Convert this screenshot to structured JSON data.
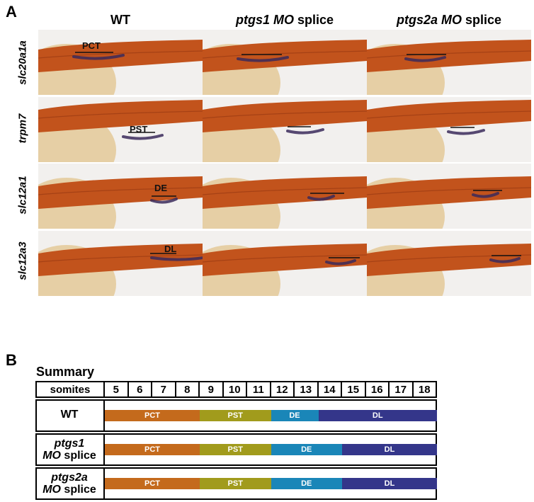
{
  "panels": {
    "a": "A",
    "b": "B"
  },
  "columns": [
    {
      "gene": "",
      "suffix": "WT"
    },
    {
      "gene": "ptgs1 MO",
      "suffix": " splice"
    },
    {
      "gene": "ptgs2a MO",
      "suffix": " splice"
    }
  ],
  "rows": [
    "slc20a1a",
    "trpm7",
    "slc12a1",
    "slc12a3"
  ],
  "segment_labels": {
    "pct": "PCT",
    "pst": "PST",
    "de": "DE",
    "dl": "DL"
  },
  "summary": {
    "title": "Summary",
    "somites_label": "somites",
    "somites": [
      "5",
      "6",
      "7",
      "8",
      "9",
      "10",
      "11",
      "12",
      "13",
      "14",
      "15",
      "16",
      "17",
      "18"
    ],
    "rows": [
      {
        "name_line1": "WT",
        "name_line2_italic": "",
        "name_line2": "",
        "bars": [
          {
            "label": "PCT",
            "start": 5,
            "end": 8,
            "color": "#c46a1c"
          },
          {
            "label": "PST",
            "start": 9,
            "end": 11,
            "color": "#a19b1c"
          },
          {
            "label": "DE",
            "start": 12,
            "end": 13,
            "color": "#1a86b8"
          },
          {
            "label": "DL",
            "start": 14,
            "end": 18,
            "color": "#34368a"
          }
        ]
      },
      {
        "name_line1": "ptgs1",
        "name_line2_italic": "MO",
        "name_line2": " splice",
        "bars": [
          {
            "label": "PCT",
            "start": 5,
            "end": 8,
            "color": "#c46a1c"
          },
          {
            "label": "PST",
            "start": 9,
            "end": 11,
            "color": "#a19b1c"
          },
          {
            "label": "DE",
            "start": 12,
            "end": 14,
            "color": "#1a86b8"
          },
          {
            "label": "DL",
            "start": 15,
            "end": 18,
            "color": "#34368a"
          }
        ]
      },
      {
        "name_line1": "ptgs2a",
        "name_line2_italic": "MO",
        "name_line2": " splice",
        "bars": [
          {
            "label": "PCT",
            "start": 5,
            "end": 8,
            "color": "#c46a1c"
          },
          {
            "label": "PST",
            "start": 9,
            "end": 11,
            "color": "#a19b1c"
          },
          {
            "label": "DE",
            "start": 12,
            "end": 14,
            "color": "#1a86b8"
          },
          {
            "label": "DL",
            "start": 15,
            "end": 18,
            "color": "#34368a"
          }
        ]
      }
    ]
  },
  "colors": {
    "tissue": "#c2531c",
    "yolk": "#e6cfa5",
    "stain": "#3b2a5a",
    "background": "#f2f0ee"
  }
}
